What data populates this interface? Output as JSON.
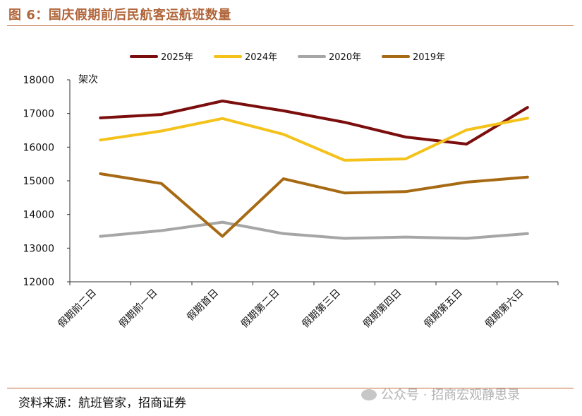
{
  "header": {
    "title": "图 6：国庆假期前后民航客运航班数量"
  },
  "footer": {
    "source": "资料来源：航班管家，招商证券",
    "watermark": "公众号 · 招商宏观静思录"
  },
  "chart_data": {
    "type": "line",
    "ylabel": "架次",
    "ylim": [
      12000,
      18000
    ],
    "yticks": [
      "12000",
      "13000",
      "14000",
      "15000",
      "16000",
      "17000",
      "18000"
    ],
    "categories": [
      "假期前二日",
      "假期前一日",
      "假期首日",
      "假期第二日",
      "假期第三日",
      "假期第四日",
      "假期第五日",
      "假期第六日"
    ],
    "legend_position": "top",
    "grid": false,
    "series": [
      {
        "name": "2025年",
        "color": "#7b0d0d",
        "values": [
          16870,
          16970,
          17370,
          17080,
          16740,
          16300,
          16090,
          17180
        ]
      },
      {
        "name": "2024年",
        "color": "#f4c21b",
        "values": [
          16210,
          16480,
          16850,
          16380,
          15610,
          15650,
          16510,
          16860
        ]
      },
      {
        "name": "2020年",
        "color": "#a6a6a6",
        "values": [
          13350,
          13520,
          13770,
          13430,
          13290,
          13330,
          13290,
          13430
        ]
      },
      {
        "name": "2019年",
        "color": "#a76a14",
        "values": [
          15210,
          14920,
          13350,
          15060,
          14640,
          14680,
          14960,
          15110
        ]
      }
    ]
  }
}
